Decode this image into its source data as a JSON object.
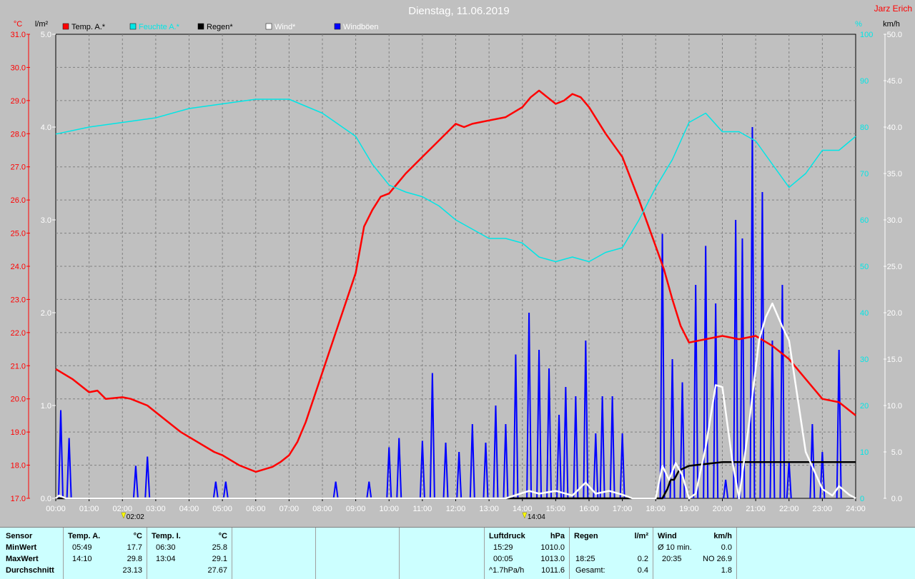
{
  "header": {
    "title": "Dienstag, 11.06.2019",
    "author": "Jarz Erich",
    "left_unit_temp": "°C",
    "left_unit_rain": "l/m²",
    "right_unit_pressure": "%",
    "right_unit_wind": "km/h"
  },
  "legend": [
    {
      "label": "Temp. A.*",
      "color": "#ff0000"
    },
    {
      "label": "Feuchte A.*",
      "color": "#00e6e6"
    },
    {
      "label": "Regen*",
      "color": "#000000"
    },
    {
      "label": "Wind*",
      "color": "#ffffff"
    },
    {
      "label": "Windböen",
      "color": "#0000ff"
    }
  ],
  "markers": [
    "02:02",
    "14:04"
  ],
  "chart_data": {
    "type": "line",
    "x_unit": "hours",
    "x_ticks": [
      "00:00",
      "01:00",
      "02:00",
      "03:00",
      "04:00",
      "05:00",
      "06:00",
      "07:00",
      "08:00",
      "09:00",
      "10:00",
      "11:00",
      "12:00",
      "13:00",
      "14:00",
      "15:00",
      "16:00",
      "17:00",
      "18:00",
      "19:00",
      "20:00",
      "21:00",
      "22:00",
      "23:00",
      "24:00"
    ],
    "xlim": [
      0,
      24
    ],
    "axes": {
      "temp": {
        "ticks": [
          "31.0",
          "30.0",
          "29.0",
          "28.0",
          "27.0",
          "26.0",
          "25.0",
          "24.0",
          "23.0",
          "22.0",
          "21.0",
          "20.0",
          "19.0",
          "18.0",
          "17.0"
        ],
        "lim": [
          17.0,
          31.0
        ]
      },
      "rain": {
        "ticks": [
          "5.0",
          "4.0",
          "3.0",
          "2.0",
          "1.0",
          "0.0"
        ],
        "lim": [
          0,
          5.0
        ]
      },
      "humidity": {
        "ticks": [
          "100",
          "90",
          "80",
          "70",
          "60",
          "50",
          "40",
          "30",
          "20",
          "10",
          "0"
        ],
        "lim": [
          0,
          100
        ]
      },
      "wind": {
        "ticks": [
          "50.0",
          "45.0",
          "40.0",
          "35.0",
          "30.0",
          "25.0",
          "20.0",
          "15.0",
          "10.0",
          "5.0",
          "0.0"
        ],
        "lim": [
          0,
          50
        ]
      }
    },
    "grid": true,
    "series": [
      {
        "name": "Temp. A.*",
        "axis": "temp",
        "color": "#ff0000",
        "x": [
          0,
          0.5,
          1,
          1.25,
          1.5,
          2,
          2.25,
          2.75,
          3.25,
          3.75,
          4.25,
          4.75,
          5,
          5.5,
          6,
          6.5,
          6.75,
          7,
          7.25,
          7.5,
          8,
          8.5,
          9,
          9.25,
          9.5,
          9.75,
          10,
          10.5,
          11,
          11.5,
          12,
          12.25,
          12.5,
          13,
          13.5,
          14,
          14.25,
          14.5,
          14.75,
          15,
          15.25,
          15.5,
          15.75,
          16,
          16.5,
          17,
          17.5,
          18,
          18.25,
          18.5,
          18.75,
          19,
          19.5,
          20,
          20.5,
          21,
          21.5,
          22,
          22.5,
          23,
          23.5,
          24
        ],
        "y": [
          20.9,
          20.6,
          20.2,
          20.25,
          20.0,
          20.05,
          20.0,
          19.8,
          19.4,
          19.0,
          18.7,
          18.4,
          18.3,
          18.0,
          17.8,
          17.95,
          18.1,
          18.3,
          18.7,
          19.3,
          20.8,
          22.3,
          23.8,
          25.2,
          25.7,
          26.1,
          26.2,
          26.8,
          27.3,
          27.8,
          28.3,
          28.2,
          28.3,
          28.4,
          28.5,
          28.8,
          29.1,
          29.3,
          29.1,
          28.9,
          29.0,
          29.2,
          29.1,
          28.8,
          28.0,
          27.3,
          26.0,
          24.6,
          23.9,
          23.0,
          22.2,
          21.7,
          21.8,
          21.9,
          21.8,
          21.9,
          21.6,
          21.2,
          20.6,
          20.0,
          19.9,
          19.5
        ]
      },
      {
        "name": "Feuchte A.*",
        "axis": "humidity",
        "color": "#00e6e6",
        "x": [
          0,
          1,
          2,
          3,
          4,
          5,
          6,
          7,
          8,
          9,
          9.5,
          10,
          10.5,
          11,
          11.5,
          12,
          12.5,
          13,
          13.5,
          14,
          14.5,
          15,
          15.5,
          16,
          16.5,
          17,
          17.5,
          18,
          18.5,
          19,
          19.5,
          20,
          20.5,
          21,
          21.5,
          22,
          22.5,
          23,
          23.5,
          24
        ],
        "y": [
          78.5,
          80,
          81,
          82,
          84,
          85,
          86,
          86,
          83,
          78,
          72,
          67.5,
          66,
          65,
          63,
          60,
          58,
          56,
          56,
          55,
          52,
          51,
          52,
          51,
          53,
          54,
          60,
          67,
          73,
          81,
          83,
          79,
          79,
          77,
          72,
          67,
          70,
          75,
          75,
          78
        ]
      },
      {
        "name": "Regen*",
        "axis": "rain",
        "color": "#000000",
        "x": [
          0,
          18.0,
          18.2,
          18.35,
          18.45,
          18.55,
          18.7,
          19,
          19.5,
          20,
          21,
          22,
          23,
          24
        ],
        "y": [
          0,
          0,
          0,
          0.1,
          0.2,
          0.2,
          0.3,
          0.35,
          0.37,
          0.39,
          0.39,
          0.39,
          0.39,
          0.39
        ]
      },
      {
        "name": "Wind*",
        "axis": "wind",
        "color": "#ffffff",
        "x": [
          0,
          0.1,
          0.3,
          13.5,
          14.2,
          14.5,
          15,
          15.5,
          15.9,
          16.2,
          16.6,
          17,
          17.3,
          18,
          18.2,
          18.4,
          18.6,
          18.8,
          19,
          19.2,
          19.5,
          19.8,
          20,
          20.3,
          20.5,
          20.8,
          21.1,
          21.3,
          21.5,
          21.8,
          22,
          22.5,
          23,
          23.3,
          23.5,
          23.8,
          24
        ],
        "y": [
          0,
          0.3,
          0,
          0,
          0.8,
          0.5,
          0.8,
          0.3,
          1.7,
          0.5,
          0.8,
          0.4,
          0,
          0,
          3.5,
          2,
          3.8,
          2.5,
          0,
          0.5,
          5.5,
          12.2,
          12,
          4,
          0,
          8,
          17,
          19.5,
          21,
          18.5,
          17,
          5,
          1,
          0.3,
          1.3,
          0.4,
          0
        ]
      }
    ],
    "gusts": {
      "name": "Windböen",
      "axis": "wind",
      "color": "#0000ff",
      "x": [
        0.15,
        0.4,
        2.4,
        2.75,
        4.8,
        5.1,
        8.4,
        9.4,
        10.0,
        10.3,
        11.0,
        11.3,
        11.7,
        12.1,
        12.5,
        12.9,
        13.2,
        13.5,
        13.8,
        14.2,
        14.5,
        14.8,
        15.1,
        15.3,
        15.6,
        15.9,
        16.2,
        16.4,
        16.7,
        17.0,
        18.2,
        18.5,
        18.8,
        19.2,
        19.5,
        19.8,
        20.1,
        20.4,
        20.6,
        20.9,
        21.2,
        21.5,
        21.8,
        22.0,
        22.7,
        23.0,
        23.5
      ],
      "y": [
        9.5,
        6.5,
        3.5,
        4.5,
        1.8,
        1.8,
        1.8,
        1.8,
        5.5,
        6.5,
        6.2,
        13.5,
        6,
        5,
        8,
        6,
        10,
        8,
        15.5,
        20,
        16,
        14,
        9,
        12,
        11,
        17,
        7,
        11,
        11,
        7,
        28.5,
        15,
        12.5,
        23,
        27.2,
        21,
        2,
        30,
        28,
        40,
        33,
        17,
        23,
        4,
        8,
        5,
        16
      ]
    }
  },
  "stats": {
    "sensor_label": "Sensor",
    "row_labels": [
      "MinWert",
      "MaxWert",
      "Durchschnitt"
    ],
    "temp_a": {
      "header": "Temp. A.",
      "unit": "°C",
      "rows": [
        {
          "time": "05:49",
          "value": "17.7"
        },
        {
          "time": "14:10",
          "value": "29.8"
        },
        {
          "time": "",
          "value": "23.13"
        }
      ]
    },
    "temp_i": {
      "header": "Temp. I.",
      "unit": "°C",
      "rows": [
        {
          "time": "06:30",
          "value": "25.8"
        },
        {
          "time": "13:04",
          "value": "29.1"
        },
        {
          "time": "",
          "value": "27.67"
        }
      ]
    },
    "pressure": {
      "header": "Luftdruck",
      "unit": "hPa",
      "rows": [
        {
          "time": "15:29",
          "value": "1010.0"
        },
        {
          "time": "00:05",
          "value": "1013.0"
        },
        {
          "time": "^1.7hPa/h",
          "value": "1011.6"
        }
      ]
    },
    "rain": {
      "header": "Regen",
      "unit": "l/m²",
      "rows": [
        {
          "time": "",
          "value": ""
        },
        {
          "time": "18:25",
          "value": "0.2"
        },
        {
          "time": "Gesamt:",
          "value": "0.4"
        }
      ]
    },
    "wind": {
      "header": "Wind",
      "unit": "km/h",
      "rows": [
        {
          "time": "Ø 10 min.",
          "value": "0.0"
        },
        {
          "time": "20:35",
          "value": "NO 26.9"
        },
        {
          "time": "",
          "value": "1.8"
        }
      ]
    }
  }
}
